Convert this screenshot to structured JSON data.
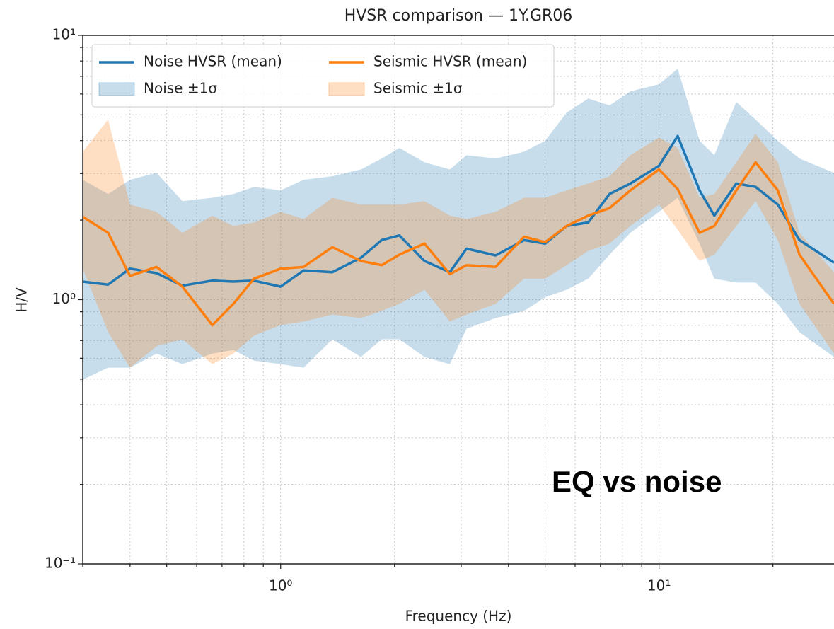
{
  "chart_data": {
    "type": "line",
    "title": "HVSR comparison — 1Y.GR06",
    "x_label": "Frequency (Hz)",
    "y_label": "H/V",
    "annotation": "EQ vs noise",
    "x_scale": "log",
    "y_scale": "log",
    "grid": true,
    "legend": "upper left",
    "xlim": [
      0.3,
      29
    ],
    "ylim": [
      0.1,
      10
    ],
    "xticks": [
      {
        "value": 1,
        "label": "10⁰"
      },
      {
        "value": 10,
        "label": "10¹"
      }
    ],
    "yticks": [
      {
        "value": 0.1,
        "label": "10⁻¹"
      },
      {
        "value": 1,
        "label": "10⁰"
      },
      {
        "value": 10,
        "label": "10¹"
      }
    ],
    "xminorticks": [
      0.3,
      0.4,
      0.5,
      0.6,
      0.7,
      0.8,
      0.9,
      2,
      3,
      4,
      5,
      6,
      7,
      8,
      9,
      20
    ],
    "yminorticks": [
      0.2,
      0.3,
      0.4,
      0.5,
      0.6,
      0.7,
      0.8,
      0.9,
      2,
      3,
      4,
      5,
      6,
      7,
      8,
      9
    ],
    "x": [
      0.3,
      0.35,
      0.4,
      0.47,
      0.55,
      0.66,
      0.75,
      0.85,
      1,
      1.15,
      1.37,
      1.63,
      1.85,
      2.06,
      2.4,
      2.8,
      3.1,
      3.7,
      4.4,
      5,
      5.7,
      6.5,
      7.4,
      8.4,
      10,
      11.2,
      12.8,
      14,
      16,
      18,
      20.6,
      23.5,
      29
    ],
    "bands": [
      {
        "name": "Noise ±1σ",
        "color": "#1f77b4",
        "lower": [
          0.498,
          0.553,
          0.553,
          0.625,
          0.57,
          0.625,
          0.645,
          0.588,
          0.57,
          0.553,
          0.708,
          0.607,
          0.708,
          0.708,
          0.607,
          0.57,
          0.776,
          0.852,
          0.906,
          1.02,
          1.09,
          1.2,
          1.48,
          1.79,
          2.15,
          2.43,
          1.63,
          1.2,
          1.16,
          1.16,
          0.964,
          0.753,
          0.607
        ],
        "upper": [
          2.84,
          2.51,
          2.84,
          3.02,
          2.36,
          2.43,
          2.51,
          2.67,
          2.59,
          2.84,
          2.93,
          3.11,
          3.42,
          3.75,
          3.31,
          3.11,
          3.52,
          3.42,
          3.63,
          3.99,
          5.1,
          5.77,
          5.43,
          6.14,
          6.53,
          7.48,
          3.99,
          3.52,
          5.6,
          4.8,
          3.99,
          3.42,
          3.02
        ]
      },
      {
        "name": "Seismic ±1σ",
        "color": "#ff7f0e",
        "lower": [
          1.31,
          0.753,
          0.553,
          0.666,
          0.708,
          0.57,
          0.625,
          0.73,
          0.801,
          0.826,
          0.878,
          0.852,
          0.906,
          0.964,
          1.09,
          0.826,
          0.878,
          0.964,
          1.2,
          1.2,
          1.35,
          1.53,
          1.63,
          1.9,
          2.29,
          1.84,
          1.4,
          1.48,
          1.9,
          2.36,
          1.68,
          0.964,
          0.625
        ],
        "upper": [
          3.63,
          4.8,
          2.29,
          2.15,
          1.79,
          2.08,
          1.9,
          1.96,
          2.15,
          2.02,
          2.43,
          2.29,
          2.29,
          2.29,
          2.36,
          2.08,
          2.02,
          2.15,
          2.43,
          2.43,
          2.59,
          2.75,
          2.93,
          3.52,
          4.11,
          3.75,
          2.43,
          2.51,
          3.31,
          4.24,
          3.31,
          1.79,
          1.27
        ]
      }
    ],
    "series": [
      {
        "name": "Noise HVSR (mean)",
        "color": "#1f77b4",
        "values": [
          1.17,
          1.14,
          1.31,
          1.26,
          1.13,
          1.18,
          1.17,
          1.18,
          1.12,
          1.29,
          1.27,
          1.44,
          1.68,
          1.75,
          1.4,
          1.27,
          1.56,
          1.47,
          1.68,
          1.63,
          1.9,
          1.96,
          2.51,
          2.75,
          3.21,
          4.16,
          2.59,
          2.08,
          2.75,
          2.67,
          2.29,
          1.68,
          1.38
        ]
      },
      {
        "name": "Seismic HVSR (mean)",
        "color": "#ff7f0e",
        "values": [
          2.06,
          1.79,
          1.23,
          1.33,
          1.12,
          0.801,
          0.964,
          1.2,
          1.31,
          1.33,
          1.58,
          1.4,
          1.35,
          1.48,
          1.63,
          1.25,
          1.35,
          1.33,
          1.73,
          1.65,
          1.9,
          2.08,
          2.22,
          2.59,
          3.11,
          2.62,
          1.79,
          1.9,
          2.59,
          3.31,
          2.59,
          1.48,
          0.964
        ]
      }
    ]
  }
}
